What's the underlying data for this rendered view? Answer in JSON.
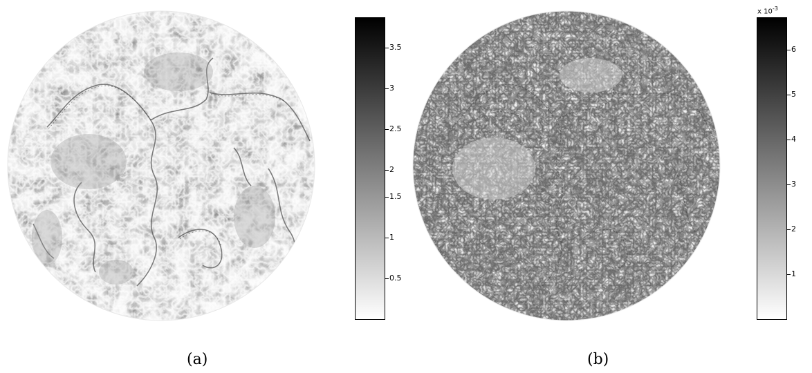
{
  "panels": [
    {
      "caption": "(a)",
      "colorbar": {
        "ticks": [
          "3.5",
          "3",
          "2.5",
          "2",
          "1.5",
          "1",
          "0.5"
        ],
        "tick_values": [
          3.5,
          3,
          2.5,
          2,
          1.5,
          1,
          0.5
        ],
        "range": [
          0.05,
          3.75
        ],
        "scale_label": ""
      },
      "colormap": [
        "#ffffff",
        "#000000"
      ]
    },
    {
      "caption": "(b)",
      "colorbar": {
        "ticks": [
          "6",
          "5",
          "4",
          "3",
          "2",
          "1"
        ],
        "tick_values": [
          6,
          5,
          4,
          3,
          2,
          1
        ],
        "range": [
          0.05,
          6.8
        ],
        "scale_label": "x 10",
        "scale_exponent": "-3"
      },
      "colormap": [
        "#ffffff",
        "#000000"
      ]
    }
  ]
}
